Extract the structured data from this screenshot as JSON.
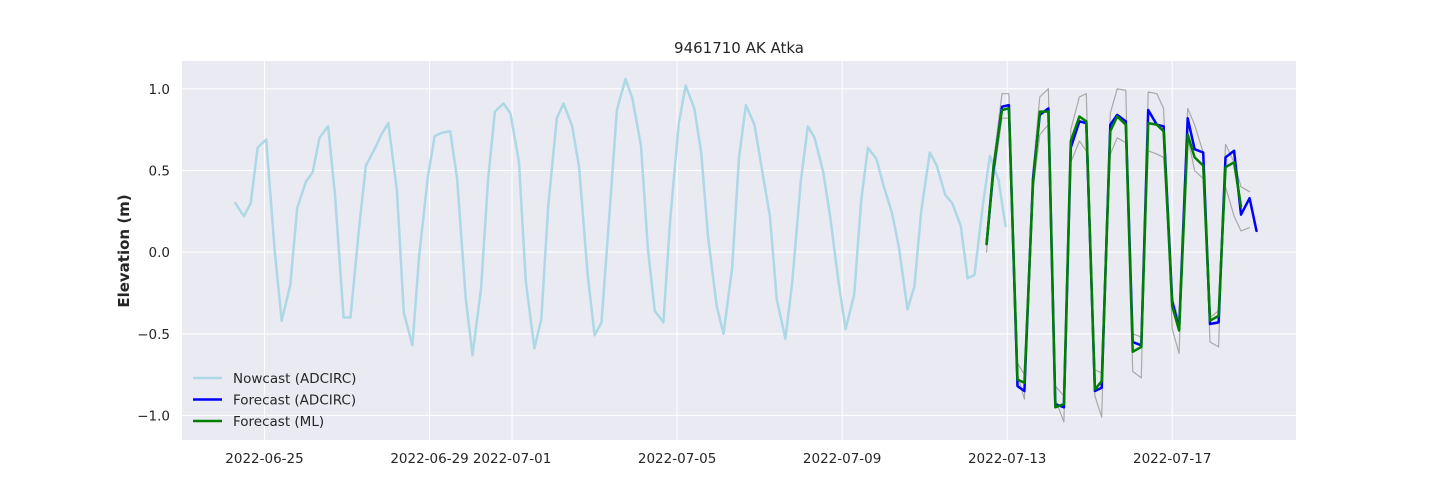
{
  "chart_data": {
    "type": "line",
    "title": "9461710 AK Atka",
    "xlabel": "",
    "ylabel": "Elevation (m)",
    "x_unit": "date",
    "xlim": [
      "2022-06-23T00:00",
      "2022-07-20T00:00"
    ],
    "ylim": [
      -1.15,
      1.17
    ],
    "x_ticks": [
      "2022-06-25",
      "2022-06-29",
      "2022-07-01",
      "2022-07-05",
      "2022-07-09",
      "2022-07-13",
      "2022-07-17"
    ],
    "y_ticks": [
      -1.0,
      -0.5,
      0.0,
      0.5,
      1.0
    ],
    "y_tick_labels": [
      "−1.0",
      "−0.5",
      "0.0",
      "0.5",
      "1.0"
    ],
    "grid": true,
    "legend_position": "lower-left",
    "colors": {
      "background": "#eaeaf2",
      "grid": "#ffffff",
      "nowcast": "#add8e6",
      "forecast_adcirc": "#0000ff",
      "forecast_ml": "#008000",
      "ensemble": "#a9a9a9"
    },
    "series": [
      {
        "name": "Nowcast (ADCIRC)",
        "color": "#add8e6",
        "x": [
          "2022-06-24T07:00",
          "2022-06-24T12:00",
          "2022-06-24T16:00",
          "2022-06-24T20:00",
          "2022-06-25T01:00",
          "2022-06-25T06:00",
          "2022-06-25T10:00",
          "2022-06-25T15:00",
          "2022-06-25T19:00",
          "2022-06-26T00:00",
          "2022-06-26T04:00",
          "2022-06-26T08:00",
          "2022-06-26T13:00",
          "2022-06-26T17:00",
          "2022-06-26T22:00",
          "2022-06-27T02:00",
          "2022-06-27T07:00",
          "2022-06-27T11:00",
          "2022-06-27T16:00",
          "2022-06-27T20:00",
          "2022-06-28T00:00",
          "2022-06-28T05:00",
          "2022-06-28T09:00",
          "2022-06-28T14:00",
          "2022-06-28T18:00",
          "2022-06-28T23:00",
          "2022-06-29T03:00",
          "2022-06-29T07:00",
          "2022-06-29T12:00",
          "2022-06-29T16:00",
          "2022-06-29T21:00",
          "2022-06-30T01:00",
          "2022-06-30T06:00",
          "2022-06-30T10:00",
          "2022-06-30T14:00",
          "2022-06-30T19:00",
          "2022-06-30T23:00",
          "2022-07-01T04:00",
          "2022-07-01T08:00",
          "2022-07-01T13:00",
          "2022-07-01T17:00",
          "2022-07-01T21:00",
          "2022-07-02T02:00",
          "2022-07-02T06:00",
          "2022-07-02T11:00",
          "2022-07-02T15:00",
          "2022-07-02T20:00",
          "2022-07-03T00:00",
          "2022-07-03T04:00",
          "2022-07-03T09:00",
          "2022-07-03T13:00",
          "2022-07-03T18:00",
          "2022-07-03T22:00",
          "2022-07-04T03:00",
          "2022-07-04T07:00",
          "2022-07-04T11:00",
          "2022-07-04T16:00",
          "2022-07-04T20:00",
          "2022-07-05T01:00",
          "2022-07-05T05:00",
          "2022-07-05T10:00",
          "2022-07-05T14:00",
          "2022-07-05T18:00",
          "2022-07-05T23:00",
          "2022-07-06T03:00",
          "2022-07-06T08:00",
          "2022-07-06T12:00",
          "2022-07-06T16:00",
          "2022-07-06T21:00",
          "2022-07-07T01:00",
          "2022-07-07T06:00",
          "2022-07-07T10:00",
          "2022-07-07T15:00",
          "2022-07-07T19:00",
          "2022-07-08T00:00",
          "2022-07-08T04:00",
          "2022-07-08T08:00",
          "2022-07-08T13:00",
          "2022-07-08T17:00",
          "2022-07-08T22:00",
          "2022-07-09T02:00",
          "2022-07-09T07:00",
          "2022-07-09T11:00",
          "2022-07-09T15:00",
          "2022-07-09T20:00",
          "2022-07-10T00:00",
          "2022-07-10T05:00",
          "2022-07-10T09:00",
          "2022-07-10T14:00",
          "2022-07-10T18:00",
          "2022-07-10T22:00",
          "2022-07-11T03:00",
          "2022-07-11T07:00",
          "2022-07-11T12:00",
          "2022-07-11T16:00",
          "2022-07-11T21:00",
          "2022-07-12T01:00",
          "2022-07-12T05:00",
          "2022-07-12T10:00",
          "2022-07-12T14:00",
          "2022-07-12T19:00",
          "2022-07-12T23:00"
        ],
        "values": [
          0.3,
          0.22,
          0.3,
          0.64,
          0.69,
          0.0,
          -0.42,
          -0.2,
          0.27,
          0.43,
          0.49,
          0.7,
          0.77,
          0.35,
          -0.4,
          -0.4,
          0.15,
          0.53,
          0.63,
          0.72,
          0.79,
          0.38,
          -0.37,
          -0.57,
          -0.02,
          0.46,
          0.71,
          0.73,
          0.74,
          0.45,
          -0.28,
          -0.63,
          -0.22,
          0.44,
          0.86,
          0.91,
          0.85,
          0.55,
          -0.18,
          -0.59,
          -0.41,
          0.28,
          0.82,
          0.91,
          0.77,
          0.52,
          -0.14,
          -0.51,
          -0.43,
          0.29,
          0.87,
          1.06,
          0.94,
          0.65,
          0.02,
          -0.36,
          -0.43,
          0.2,
          0.79,
          1.02,
          0.88,
          0.61,
          0.09,
          -0.33,
          -0.5,
          -0.1,
          0.58,
          0.9,
          0.78,
          0.53,
          0.22,
          -0.29,
          -0.53,
          -0.18,
          0.44,
          0.77,
          0.7,
          0.49,
          0.22,
          -0.19,
          -0.47,
          -0.26,
          0.31,
          0.64,
          0.57,
          0.41,
          0.24,
          0.03,
          -0.35,
          -0.21,
          0.25,
          0.61,
          0.53,
          0.35,
          0.3,
          0.16,
          -0.16,
          -0.14,
          0.3,
          0.59,
          0.44,
          0.16
        ]
      },
      {
        "name": "Forecast (ADCIRC)",
        "color": "#0000ff",
        "x": [
          "2022-07-12T12:00",
          "2022-07-12T16:00",
          "2022-07-12T21:00",
          "2022-07-13T01:00",
          "2022-07-13T06:00",
          "2022-07-13T10:00",
          "2022-07-13T15:00",
          "2022-07-13T19:00",
          "2022-07-14T00:00",
          "2022-07-14T04:00",
          "2022-07-14T09:00",
          "2022-07-14T13:00",
          "2022-07-14T18:00",
          "2022-07-14T22:00",
          "2022-07-15T03:00",
          "2022-07-15T07:00",
          "2022-07-15T12:00",
          "2022-07-15T16:00",
          "2022-07-15T21:00",
          "2022-07-16T01:00",
          "2022-07-16T06:00",
          "2022-07-16T10:00",
          "2022-07-16T15:00",
          "2022-07-16T19:00",
          "2022-07-17T00:00",
          "2022-07-17T04:00",
          "2022-07-17T09:00",
          "2022-07-17T13:00",
          "2022-07-17T18:00",
          "2022-07-17T22:00",
          "2022-07-18T03:00",
          "2022-07-18T07:00",
          "2022-07-18T12:00",
          "2022-07-18T16:00",
          "2022-07-18T21:00",
          "2022-07-19T01:00"
        ],
        "values": [
          0.05,
          0.5,
          0.89,
          0.9,
          -0.82,
          -0.85,
          0.45,
          0.84,
          0.88,
          -0.93,
          -0.95,
          0.64,
          0.8,
          0.79,
          -0.85,
          -0.83,
          0.78,
          0.84,
          0.8,
          -0.55,
          -0.57,
          0.87,
          0.78,
          0.77,
          -0.3,
          -0.47,
          0.82,
          0.63,
          0.61,
          -0.44,
          -0.43,
          0.58,
          0.62,
          0.23,
          0.33,
          0.13
        ]
      },
      {
        "name": "Forecast (ML)",
        "color": "#008000",
        "x": [
          "2022-07-12T12:00",
          "2022-07-12T16:00",
          "2022-07-12T21:00",
          "2022-07-13T01:00",
          "2022-07-13T06:00",
          "2022-07-13T10:00",
          "2022-07-13T15:00",
          "2022-07-13T19:00",
          "2022-07-14T00:00",
          "2022-07-14T04:00",
          "2022-07-14T09:00",
          "2022-07-14T13:00",
          "2022-07-14T18:00",
          "2022-07-14T22:00",
          "2022-07-15T03:00",
          "2022-07-15T07:00",
          "2022-07-15T12:00",
          "2022-07-15T16:00",
          "2022-07-15T21:00",
          "2022-07-16T01:00",
          "2022-07-16T06:00",
          "2022-07-16T10:00",
          "2022-07-16T15:00",
          "2022-07-16T19:00",
          "2022-07-17T00:00",
          "2022-07-17T04:00",
          "2022-07-17T09:00",
          "2022-07-17T13:00",
          "2022-07-17T18:00",
          "2022-07-17T22:00",
          "2022-07-18T03:00",
          "2022-07-18T07:00",
          "2022-07-18T12:00",
          "2022-07-18T16:00"
        ],
        "values": [
          0.05,
          0.52,
          0.87,
          0.88,
          -0.78,
          -0.8,
          0.42,
          0.86,
          0.86,
          -0.95,
          -0.93,
          0.68,
          0.83,
          0.8,
          -0.84,
          -0.79,
          0.74,
          0.83,
          0.78,
          -0.61,
          -0.58,
          0.79,
          0.78,
          0.74,
          -0.33,
          -0.48,
          0.72,
          0.58,
          0.53,
          -0.42,
          -0.39,
          0.52,
          0.55,
          0.28
        ]
      },
      {
        "color": "#a9a9a9",
        "x": [
          "2022-07-12T12:00",
          "2022-07-12T16:00",
          "2022-07-12T21:00",
          "2022-07-13T01:00",
          "2022-07-13T06:00",
          "2022-07-13T10:00",
          "2022-07-13T15:00",
          "2022-07-13T19:00",
          "2022-07-14T00:00",
          "2022-07-14T04:00",
          "2022-07-14T09:00",
          "2022-07-14T13:00",
          "2022-07-14T18:00",
          "2022-07-14T22:00",
          "2022-07-15T03:00",
          "2022-07-15T07:00",
          "2022-07-15T12:00",
          "2022-07-15T16:00",
          "2022-07-15T21:00",
          "2022-07-16T01:00",
          "2022-07-16T06:00",
          "2022-07-16T10:00",
          "2022-07-16T15:00",
          "2022-07-16T19:00",
          "2022-07-17T00:00",
          "2022-07-17T04:00",
          "2022-07-17T09:00",
          "2022-07-17T13:00",
          "2022-07-17T18:00",
          "2022-07-17T22:00",
          "2022-07-18T03:00",
          "2022-07-18T07:00",
          "2022-07-18T12:00",
          "2022-07-18T16:00",
          "2022-07-18T21:00"
        ],
        "values": [
          0.0,
          0.55,
          0.97,
          0.97,
          -0.75,
          -0.9,
          0.5,
          0.95,
          1.0,
          -0.9,
          -1.04,
          0.75,
          0.95,
          0.97,
          -0.88,
          -1.01,
          0.85,
          1.0,
          0.99,
          -0.73,
          -0.77,
          0.98,
          0.97,
          0.88,
          -0.47,
          -0.62,
          0.88,
          0.78,
          0.61,
          -0.55,
          -0.58,
          0.66,
          0.55,
          0.4,
          0.37
        ]
      },
      {
        "color": "#a9a9a9",
        "x": [
          "2022-07-12T12:00",
          "2022-07-12T16:00",
          "2022-07-12T21:00",
          "2022-07-13T01:00",
          "2022-07-13T06:00",
          "2022-07-13T10:00",
          "2022-07-13T15:00",
          "2022-07-13T19:00",
          "2022-07-14T00:00",
          "2022-07-14T04:00",
          "2022-07-14T09:00",
          "2022-07-14T13:00",
          "2022-07-14T18:00",
          "2022-07-14T22:00",
          "2022-07-15T03:00",
          "2022-07-15T07:00",
          "2022-07-15T12:00",
          "2022-07-15T16:00",
          "2022-07-15T21:00",
          "2022-07-16T01:00",
          "2022-07-16T06:00",
          "2022-07-16T10:00",
          "2022-07-16T15:00",
          "2022-07-16T19:00",
          "2022-07-17T00:00",
          "2022-07-17T04:00",
          "2022-07-17T09:00",
          "2022-07-17T13:00",
          "2022-07-17T18:00",
          "2022-07-17T22:00",
          "2022-07-18T03:00",
          "2022-07-18T07:00",
          "2022-07-18T12:00",
          "2022-07-18T16:00",
          "2022-07-18T21:00"
        ],
        "values": [
          0.05,
          0.45,
          0.82,
          0.82,
          -0.68,
          -0.75,
          0.38,
          0.72,
          0.78,
          -0.82,
          -0.88,
          0.55,
          0.68,
          0.62,
          -0.72,
          -0.74,
          0.6,
          0.7,
          0.67,
          -0.5,
          -0.52,
          0.62,
          0.6,
          0.58,
          -0.28,
          -0.42,
          0.7,
          0.5,
          0.45,
          -0.4,
          -0.36,
          0.4,
          0.22,
          0.13,
          0.15
        ]
      }
    ]
  }
}
